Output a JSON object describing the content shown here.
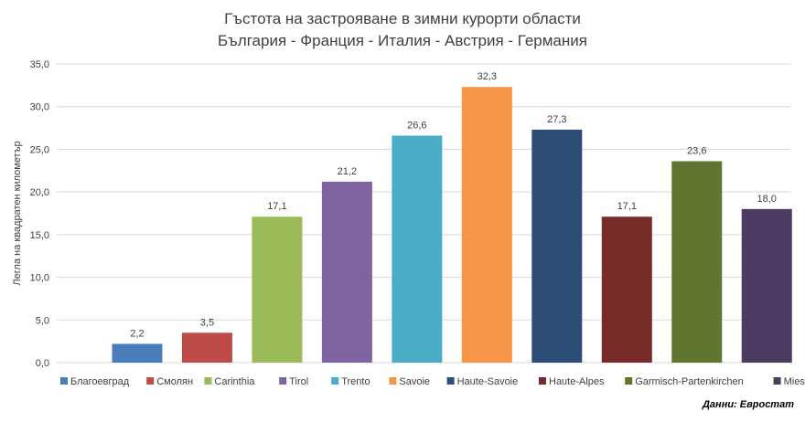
{
  "chart_data": {
    "type": "bar",
    "title_line1": "Гъстота на застрояване в зимни курорти области",
    "title_line2": "България - Франция - Италия - Австрия - Германия",
    "xlabel": "",
    "ylabel": "Легла на квадратен километър",
    "ylim": [
      0,
      35
    ],
    "y_ticks": [
      "0,0",
      "5,0",
      "10,0",
      "15,0",
      "20,0",
      "25,0",
      "30,0",
      "35,0"
    ],
    "grid": true,
    "legend_position": "bottom",
    "source": "Данни: Евростат",
    "series": [
      {
        "name": "Благоевград",
        "value": 2.2,
        "label": "2,2",
        "color": "#4a7ebb"
      },
      {
        "name": "Смолян",
        "value": 3.5,
        "label": "3,5",
        "color": "#be4b48"
      },
      {
        "name": "Carinthia",
        "value": 17.1,
        "label": "17,1",
        "color": "#9bbb59"
      },
      {
        "name": "Tirol",
        "value": 21.2,
        "label": "21,2",
        "color": "#8064a2"
      },
      {
        "name": "Trento",
        "value": 26.6,
        "label": "26,6",
        "color": "#4bacc6"
      },
      {
        "name": "Savoie",
        "value": 32.3,
        "label": "32,3",
        "color": "#f79646"
      },
      {
        "name": "Haute-Savoie",
        "value": 27.3,
        "label": "27,3",
        "color": "#2c4d75"
      },
      {
        "name": "Haute-Alpes",
        "value": 17.1,
        "label": "17,1",
        "color": "#772c2a"
      },
      {
        "name": "Garmisch-Partenkirchen",
        "value": 23.6,
        "label": "23,6",
        "color": "#5f7530"
      },
      {
        "name": "Miesbach",
        "value": 18.0,
        "label": "18,0",
        "color": "#4d3b62"
      }
    ]
  }
}
